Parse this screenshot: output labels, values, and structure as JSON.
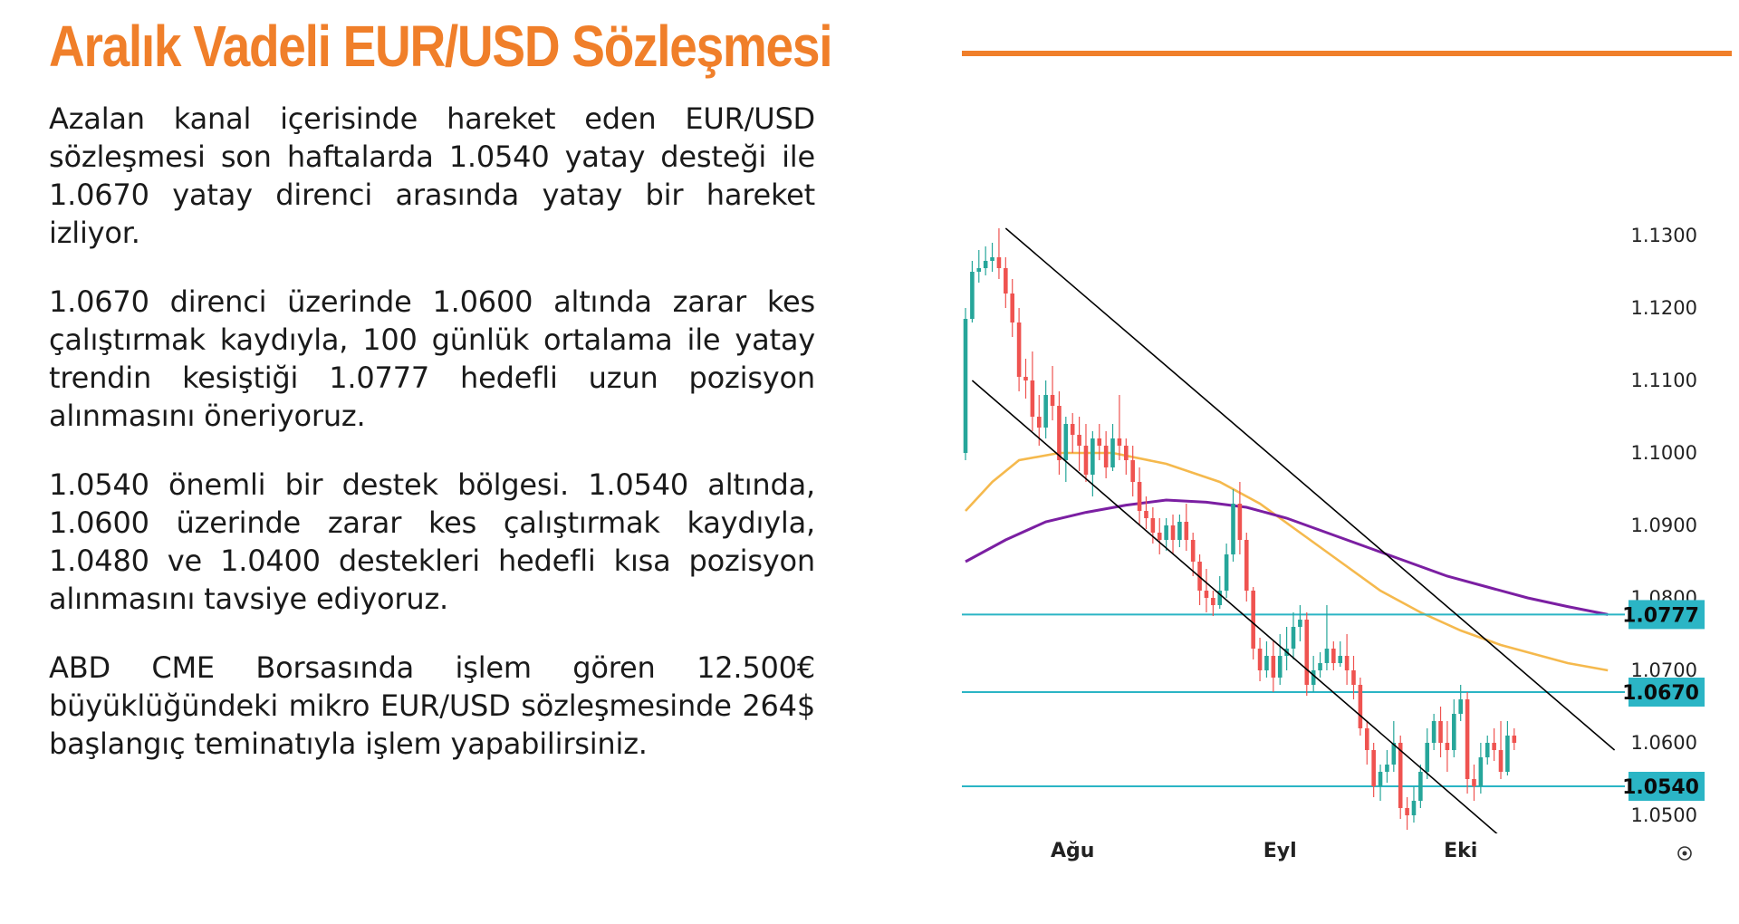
{
  "title": "Aralık Vadeli EUR/USD Sözleşmesi",
  "paragraphs": [
    "Azalan kanal içerisinde hareket eden EUR/USD sözleşmesi son haftalarda 1.0540 yatay desteği ile 1.0670 yatay direnci arasında yatay bir hareket izliyor.",
    "1.0670 direnci üzerinde 1.0600 altında zarar kes çalıştırmak kaydıyla, 100 günlük ortalama ile yatay trendin kesiştiği 1.0777 hedefli uzun pozisyon alınmasını öneriyoruz.",
    "1.0540 önemli bir destek bölgesi. 1.0540 altında, 1.0600 üzerinde zarar kes çalıştırmak kaydıyla, 1.0480 ve 1.0400 destekleri hedefli kısa pozisyon alınmasını tavsiye ediyoruz.",
    "ABD CME Borsasında işlem gören 12.500€ büyüklüğündeki mikro EUR/USD sözleşmesinde 264$ başlangıç teminatıyla işlem yapabilirsiniz."
  ],
  "colors": {
    "accent": "#F07F2A",
    "up": "#26A69A",
    "down": "#EF5350",
    "ma_short": "#F5B94D",
    "ma_long": "#7B1FA2",
    "level": "#2BB5C5",
    "channel": "#000000"
  },
  "chart_data": {
    "type": "candlestick",
    "ylim": [
      1.0475,
      1.1325
    ],
    "y_ticks": [
      "1.1300",
      "1.1200",
      "1.1100",
      "1.1000",
      "1.0900",
      "1.0800",
      "1.0700",
      "1.0600",
      "1.0500"
    ],
    "x_ticks": [
      {
        "label": "Ağu",
        "index": 16
      },
      {
        "label": "Eyl",
        "index": 47
      },
      {
        "label": "Eki",
        "index": 74
      }
    ],
    "levels": [
      {
        "value": 1.0777,
        "label": "1.0777"
      },
      {
        "value": 1.067,
        "label": "1.0670"
      },
      {
        "value": 1.054,
        "label": "1.0540"
      }
    ],
    "channel": [
      {
        "x0": 6,
        "y0": 1.131,
        "x1": 97,
        "y1": 1.059
      },
      {
        "x0": 1,
        "y0": 1.11,
        "x1": 80,
        "y1": 1.047
      }
    ],
    "ma_short": [
      [
        0,
        1.092
      ],
      [
        4,
        1.096
      ],
      [
        8,
        1.099
      ],
      [
        14,
        1.1
      ],
      [
        22,
        1.1
      ],
      [
        30,
        1.0985
      ],
      [
        38,
        1.096
      ],
      [
        44,
        1.093
      ],
      [
        50,
        1.089
      ],
      [
        56,
        1.085
      ],
      [
        62,
        1.081
      ],
      [
        68,
        1.078
      ],
      [
        74,
        1.0755
      ],
      [
        80,
        1.0735
      ],
      [
        86,
        1.072
      ],
      [
        90,
        1.071
      ],
      [
        96,
        1.07
      ]
    ],
    "ma_long": [
      [
        0,
        1.085
      ],
      [
        6,
        1.088
      ],
      [
        12,
        1.0905
      ],
      [
        18,
        1.0918
      ],
      [
        24,
        1.0928
      ],
      [
        30,
        1.0935
      ],
      [
        36,
        1.0932
      ],
      [
        42,
        1.0925
      ],
      [
        48,
        1.091
      ],
      [
        54,
        1.089
      ],
      [
        60,
        1.087
      ],
      [
        66,
        1.085
      ],
      [
        72,
        1.083
      ],
      [
        78,
        1.0815
      ],
      [
        84,
        1.08
      ],
      [
        90,
        1.0788
      ],
      [
        96,
        1.0777
      ]
    ],
    "candles": [
      [
        1.1,
        1.1185,
        1.12,
        1.099
      ],
      [
        1.1185,
        1.125,
        1.1265,
        1.118
      ],
      [
        1.125,
        1.1255,
        1.128,
        1.1235
      ],
      [
        1.1255,
        1.1265,
        1.1285,
        1.1245
      ],
      [
        1.1265,
        1.127,
        1.129,
        1.125
      ],
      [
        1.127,
        1.1255,
        1.131,
        1.124
      ],
      [
        1.1255,
        1.122,
        1.127,
        1.12
      ],
      [
        1.122,
        1.118,
        1.124,
        1.116
      ],
      [
        1.118,
        1.1105,
        1.12,
        1.1085
      ],
      [
        1.1105,
        1.11,
        1.113,
        1.1075
      ],
      [
        1.11,
        1.105,
        1.114,
        1.103
      ],
      [
        1.105,
        1.1035,
        1.108,
        1.101
      ],
      [
        1.1035,
        1.108,
        1.11,
        1.102
      ],
      [
        1.108,
        1.1065,
        1.112,
        1.1045
      ],
      [
        1.1065,
        1.099,
        1.1085,
        1.097
      ],
      [
        1.099,
        1.104,
        1.105,
        1.096
      ],
      [
        1.104,
        1.1025,
        1.1055,
        1.1
      ],
      [
        1.1025,
        1.101,
        1.105,
        1.0975
      ],
      [
        1.101,
        1.097,
        1.104,
        1.096
      ],
      [
        1.097,
        1.102,
        1.103,
        1.094
      ],
      [
        1.102,
        1.101,
        1.104,
        1.099
      ],
      [
        1.101,
        1.098,
        1.103,
        1.0965
      ],
      [
        1.098,
        1.102,
        1.104,
        1.0975
      ],
      [
        1.102,
        1.101,
        1.108,
        1.099
      ],
      [
        1.101,
        1.099,
        1.102,
        1.097
      ],
      [
        1.099,
        1.096,
        1.101,
        1.094
      ],
      [
        1.096,
        1.092,
        1.098,
        1.09
      ],
      [
        1.092,
        1.091,
        1.094,
        1.0895
      ],
      [
        1.091,
        1.089,
        1.0925,
        1.0875
      ],
      [
        1.089,
        1.088,
        1.091,
        1.086
      ],
      [
        1.088,
        1.09,
        1.091,
        1.0865
      ],
      [
        1.09,
        1.088,
        1.0915,
        1.086
      ],
      [
        1.088,
        1.0905,
        1.0915,
        1.087
      ],
      [
        1.0905,
        1.088,
        1.093,
        1.0865
      ],
      [
        1.088,
        1.085,
        1.089,
        1.083
      ],
      [
        1.085,
        1.081,
        1.086,
        1.079
      ],
      [
        1.081,
        1.08,
        1.084,
        1.078
      ],
      [
        1.08,
        1.079,
        1.081,
        1.0775
      ],
      [
        1.079,
        1.081,
        1.083,
        1.0785
      ],
      [
        1.081,
        1.086,
        1.0875,
        1.08
      ],
      [
        1.086,
        1.093,
        1.095,
        1.085
      ],
      [
        1.093,
        1.088,
        1.096,
        1.086
      ],
      [
        1.088,
        1.081,
        1.089,
        1.0795
      ],
      [
        1.081,
        1.073,
        1.0815,
        1.0715
      ],
      [
        1.073,
        1.07,
        1.0745,
        1.0685
      ],
      [
        1.07,
        1.072,
        1.074,
        1.069
      ],
      [
        1.072,
        1.069,
        1.074,
        1.067
      ],
      [
        1.069,
        1.072,
        1.075,
        1.068
      ],
      [
        1.072,
        1.073,
        1.076,
        1.07
      ],
      [
        1.073,
        1.076,
        1.078,
        1.0715
      ],
      [
        1.076,
        1.077,
        1.079,
        1.074
      ],
      [
        1.077,
        1.068,
        1.078,
        1.0665
      ],
      [
        1.068,
        1.07,
        1.072,
        1.067
      ],
      [
        1.07,
        1.071,
        1.0725,
        1.069
      ],
      [
        1.071,
        1.073,
        1.079,
        1.07
      ],
      [
        1.073,
        1.071,
        1.074,
        1.07
      ],
      [
        1.071,
        1.072,
        1.074,
        1.0705
      ],
      [
        1.072,
        1.07,
        1.075,
        1.068
      ],
      [
        1.07,
        1.068,
        1.072,
        1.066
      ],
      [
        1.068,
        1.062,
        1.069,
        1.061
      ],
      [
        1.062,
        1.059,
        1.063,
        1.057
      ],
      [
        1.059,
        1.054,
        1.06,
        1.0525
      ],
      [
        1.054,
        1.056,
        1.057,
        1.052
      ],
      [
        1.056,
        1.057,
        1.059,
        1.0545
      ],
      [
        1.057,
        1.06,
        1.063,
        1.056
      ],
      [
        1.06,
        1.051,
        1.061,
        1.0495
      ],
      [
        1.051,
        1.05,
        1.0525,
        1.048
      ],
      [
        1.05,
        1.052,
        1.054,
        1.049
      ],
      [
        1.052,
        1.056,
        1.057,
        1.051
      ],
      [
        1.056,
        1.06,
        1.062,
        1.055
      ],
      [
        1.06,
        1.063,
        1.064,
        1.059
      ],
      [
        1.063,
        1.06,
        1.065,
        1.058
      ],
      [
        1.06,
        1.059,
        1.063,
        1.056
      ],
      [
        1.059,
        1.064,
        1.066,
        1.058
      ],
      [
        1.064,
        1.066,
        1.068,
        1.063
      ],
      [
        1.066,
        1.055,
        1.067,
        1.053
      ],
      [
        1.055,
        1.054,
        1.057,
        1.052
      ],
      [
        1.054,
        1.058,
        1.06,
        1.053
      ],
      [
        1.058,
        1.06,
        1.061,
        1.057
      ],
      [
        1.06,
        1.059,
        1.062,
        1.0575
      ],
      [
        1.059,
        1.056,
        1.063,
        1.055
      ],
      [
        1.056,
        1.061,
        1.063,
        1.0555
      ],
      [
        1.061,
        1.06,
        1.062,
        1.059
      ]
    ]
  }
}
